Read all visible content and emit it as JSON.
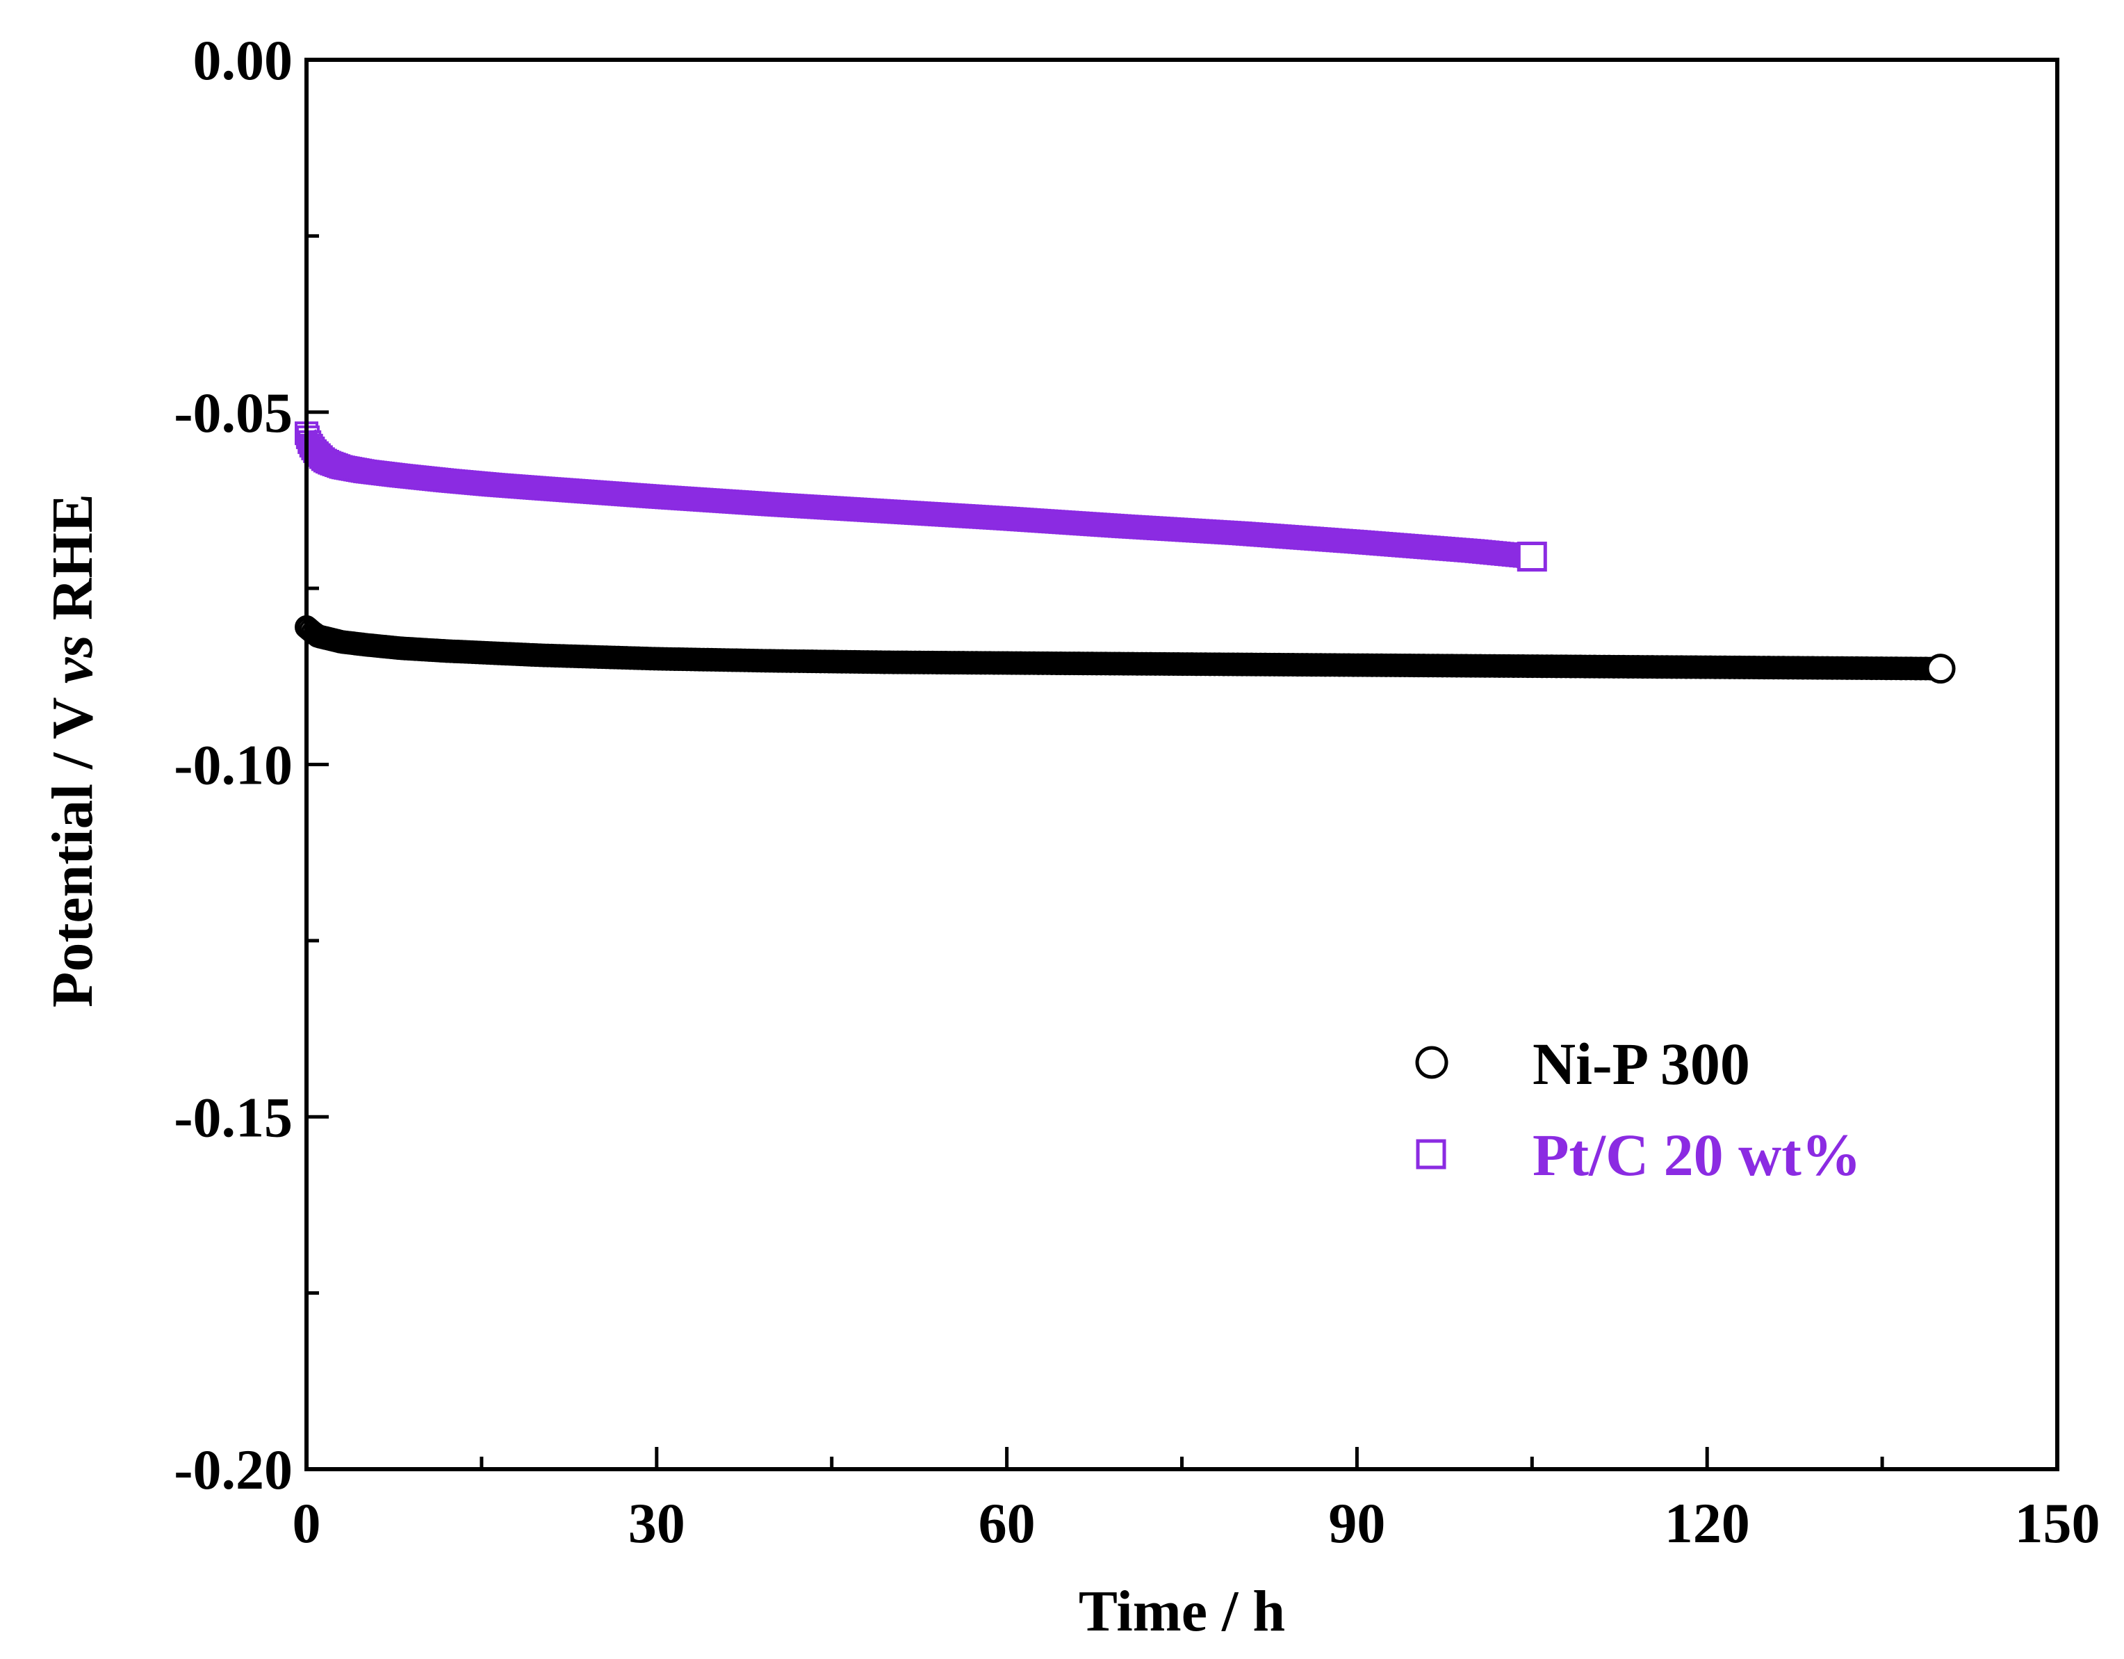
{
  "chart_data": {
    "type": "scatter",
    "title": "",
    "xlabel": "Time / h",
    "ylabel_parts": [
      "Potential / V ",
      "vs",
      " RHE"
    ],
    "xlim": [
      0,
      150
    ],
    "ylim": [
      -0.2,
      0.0
    ],
    "xticks": [
      0,
      30,
      60,
      90,
      120,
      150
    ],
    "xtick_labels": [
      "0",
      "30",
      "60",
      "90",
      "120",
      "150"
    ],
    "yticks": [
      0.0,
      -0.05,
      -0.1,
      -0.15,
      -0.2
    ],
    "ytick_labels": [
      "0.00",
      "-0.05",
      "-0.10",
      "-0.15",
      "-0.20"
    ],
    "grid": false,
    "legend_position": "lower-right",
    "series": [
      {
        "name": "Ni-P 300",
        "marker": "circle",
        "color": "#000000",
        "x": [
          0,
          0.5,
          1,
          2,
          3,
          5,
          8,
          12,
          16,
          20,
          30,
          40,
          50,
          60,
          70,
          80,
          90,
          100,
          110,
          120,
          130,
          140
        ],
        "y": [
          -0.0805,
          -0.0812,
          -0.0818,
          -0.0822,
          -0.0826,
          -0.083,
          -0.0835,
          -0.0839,
          -0.0842,
          -0.0845,
          -0.085,
          -0.0853,
          -0.0855,
          -0.0856,
          -0.0857,
          -0.0858,
          -0.0859,
          -0.086,
          -0.0861,
          -0.0862,
          -0.0863,
          -0.0864
        ]
      },
      {
        "name": "Pt/C 20 wt%",
        "marker": "square",
        "color": "#8B2BE2",
        "x": [
          0,
          0.3,
          0.7,
          1,
          1.5,
          2,
          3,
          5,
          8,
          12,
          16,
          20,
          30,
          40,
          50,
          60,
          70,
          80,
          90,
          100,
          105
        ],
        "y": [
          -0.053,
          -0.0545,
          -0.0555,
          -0.056,
          -0.0568,
          -0.0572,
          -0.0578,
          -0.0584,
          -0.059,
          -0.0597,
          -0.0603,
          -0.0608,
          -0.062,
          -0.0631,
          -0.0641,
          -0.0651,
          -0.0662,
          -0.0672,
          -0.0684,
          -0.0697,
          -0.0705
        ]
      }
    ]
  }
}
